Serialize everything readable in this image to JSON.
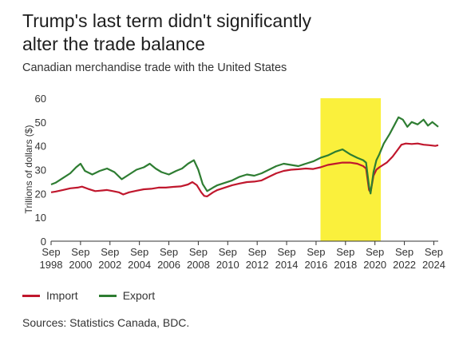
{
  "header": {
    "title_line1": "Trump's last term didn't significantly",
    "title_line2": "alter the trade balance",
    "subtitle": "Canadian merchandise trade with the United States"
  },
  "legend": {
    "import_label": "Import",
    "export_label": "Export"
  },
  "footer": {
    "source": "Sources: Statistics Canada, BDC."
  },
  "colors": {
    "import": "#c0172d",
    "export": "#2e7d32",
    "highlight": "#faf03c",
    "axis": "#333333"
  },
  "chart_data": {
    "type": "line",
    "ylabel": "Trillions of dollars ($)",
    "ylim": [
      0,
      60
    ],
    "yticks": [
      0,
      10,
      20,
      30,
      40,
      50,
      60
    ],
    "xlim": [
      1998.7,
      2025.0
    ],
    "xticks": [
      {
        "x": 1998.7,
        "top": "Sep",
        "bottom": "1998"
      },
      {
        "x": 2000.7,
        "top": "Sep",
        "bottom": "2000"
      },
      {
        "x": 2002.7,
        "top": "Sep",
        "bottom": "2002"
      },
      {
        "x": 2004.7,
        "top": "Sep",
        "bottom": "2004"
      },
      {
        "x": 2006.7,
        "top": "Sep",
        "bottom": "2006"
      },
      {
        "x": 2008.7,
        "top": "Sep",
        "bottom": "2008"
      },
      {
        "x": 2010.7,
        "top": "Sep",
        "bottom": "2010"
      },
      {
        "x": 2012.7,
        "top": "Sep",
        "bottom": "2012"
      },
      {
        "x": 2014.7,
        "top": "Sep",
        "bottom": "2014"
      },
      {
        "x": 2016.7,
        "top": "Sep",
        "bottom": "2016"
      },
      {
        "x": 2018.7,
        "top": "Sep",
        "bottom": "2018"
      },
      {
        "x": 2020.7,
        "top": "Sep",
        "bottom": "2020"
      },
      {
        "x": 2022.7,
        "top": "Sep",
        "bottom": "2022"
      },
      {
        "x": 2024.7,
        "top": "Sep",
        "bottom": "2024"
      }
    ],
    "highlight_range": [
      2017.0,
      2021.1
    ],
    "series": [
      {
        "name": "Import",
        "points": [
          [
            1998.7,
            20.5
          ],
          [
            1999.0,
            20.8
          ],
          [
            1999.5,
            21.5
          ],
          [
            2000.0,
            22.2
          ],
          [
            2000.5,
            22.5
          ],
          [
            2000.8,
            22.9
          ],
          [
            2001.2,
            22.0
          ],
          [
            2001.7,
            21.0
          ],
          [
            2002.0,
            21.2
          ],
          [
            2002.5,
            21.5
          ],
          [
            2002.9,
            21.0
          ],
          [
            2003.3,
            20.5
          ],
          [
            2003.6,
            19.6
          ],
          [
            2004.0,
            20.5
          ],
          [
            2004.5,
            21.2
          ],
          [
            2005.0,
            21.8
          ],
          [
            2005.5,
            22.0
          ],
          [
            2006.0,
            22.5
          ],
          [
            2006.5,
            22.5
          ],
          [
            2007.0,
            22.8
          ],
          [
            2007.5,
            23.0
          ],
          [
            2008.0,
            23.8
          ],
          [
            2008.3,
            24.8
          ],
          [
            2008.6,
            23.5
          ],
          [
            2008.9,
            20.5
          ],
          [
            2009.1,
            19.0
          ],
          [
            2009.3,
            18.8
          ],
          [
            2009.7,
            20.5
          ],
          [
            2010.0,
            21.5
          ],
          [
            2010.5,
            22.5
          ],
          [
            2011.0,
            23.5
          ],
          [
            2011.5,
            24.2
          ],
          [
            2012.0,
            24.8
          ],
          [
            2012.5,
            25.0
          ],
          [
            2013.0,
            25.5
          ],
          [
            2013.5,
            27.0
          ],
          [
            2014.0,
            28.5
          ],
          [
            2014.5,
            29.5
          ],
          [
            2015.0,
            30.0
          ],
          [
            2015.5,
            30.2
          ],
          [
            2016.0,
            30.5
          ],
          [
            2016.5,
            30.3
          ],
          [
            2017.0,
            31.0
          ],
          [
            2017.5,
            32.0
          ],
          [
            2018.0,
            32.5
          ],
          [
            2018.5,
            33.0
          ],
          [
            2019.0,
            33.0
          ],
          [
            2019.5,
            32.5
          ],
          [
            2019.9,
            31.5
          ],
          [
            2020.1,
            30.5
          ],
          [
            2020.3,
            21.5
          ],
          [
            2020.4,
            20.5
          ],
          [
            2020.6,
            27.5
          ],
          [
            2020.8,
            30.0
          ],
          [
            2021.0,
            31.0
          ],
          [
            2021.5,
            33.0
          ],
          [
            2021.9,
            35.5
          ],
          [
            2022.2,
            38.0
          ],
          [
            2022.5,
            40.5
          ],
          [
            2022.8,
            41.0
          ],
          [
            2023.2,
            40.8
          ],
          [
            2023.6,
            41.0
          ],
          [
            2024.0,
            40.5
          ],
          [
            2024.4,
            40.3
          ],
          [
            2024.8,
            40.0
          ],
          [
            2025.0,
            40.3
          ]
        ]
      },
      {
        "name": "Export",
        "points": [
          [
            1998.7,
            23.8
          ],
          [
            1999.0,
            24.5
          ],
          [
            1999.5,
            26.5
          ],
          [
            2000.0,
            28.5
          ],
          [
            2000.4,
            31.0
          ],
          [
            2000.7,
            32.5
          ],
          [
            2001.0,
            29.5
          ],
          [
            2001.5,
            28.0
          ],
          [
            2002.0,
            29.5
          ],
          [
            2002.5,
            30.5
          ],
          [
            2003.0,
            29.0
          ],
          [
            2003.5,
            26.0
          ],
          [
            2004.0,
            28.0
          ],
          [
            2004.5,
            30.0
          ],
          [
            2005.0,
            31.0
          ],
          [
            2005.4,
            32.5
          ],
          [
            2005.8,
            30.5
          ],
          [
            2006.2,
            29.0
          ],
          [
            2006.7,
            28.0
          ],
          [
            2007.2,
            29.5
          ],
          [
            2007.6,
            30.5
          ],
          [
            2008.0,
            32.5
          ],
          [
            2008.4,
            34.0
          ],
          [
            2008.7,
            30.0
          ],
          [
            2009.0,
            24.0
          ],
          [
            2009.3,
            21.0
          ],
          [
            2009.7,
            22.5
          ],
          [
            2010.0,
            23.5
          ],
          [
            2010.5,
            24.5
          ],
          [
            2011.0,
            25.5
          ],
          [
            2011.5,
            27.0
          ],
          [
            2012.0,
            28.0
          ],
          [
            2012.5,
            27.5
          ],
          [
            2013.0,
            28.5
          ],
          [
            2013.5,
            30.0
          ],
          [
            2014.0,
            31.5
          ],
          [
            2014.5,
            32.5
          ],
          [
            2015.0,
            32.0
          ],
          [
            2015.5,
            31.5
          ],
          [
            2016.0,
            32.5
          ],
          [
            2016.5,
            33.5
          ],
          [
            2017.0,
            35.0
          ],
          [
            2017.5,
            36.0
          ],
          [
            2018.0,
            37.5
          ],
          [
            2018.5,
            38.5
          ],
          [
            2019.0,
            36.5
          ],
          [
            2019.5,
            35.0
          ],
          [
            2019.9,
            34.0
          ],
          [
            2020.1,
            33.0
          ],
          [
            2020.3,
            23.0
          ],
          [
            2020.4,
            20.0
          ],
          [
            2020.6,
            29.0
          ],
          [
            2020.8,
            34.0
          ],
          [
            2021.0,
            36.5
          ],
          [
            2021.3,
            41.0
          ],
          [
            2021.7,
            45.0
          ],
          [
            2022.0,
            48.5
          ],
          [
            2022.3,
            52.0
          ],
          [
            2022.6,
            51.0
          ],
          [
            2022.9,
            48.0
          ],
          [
            2023.2,
            50.0
          ],
          [
            2023.6,
            49.0
          ],
          [
            2024.0,
            51.0
          ],
          [
            2024.3,
            48.5
          ],
          [
            2024.6,
            50.0
          ],
          [
            2025.0,
            48.0
          ]
        ]
      }
    ]
  }
}
